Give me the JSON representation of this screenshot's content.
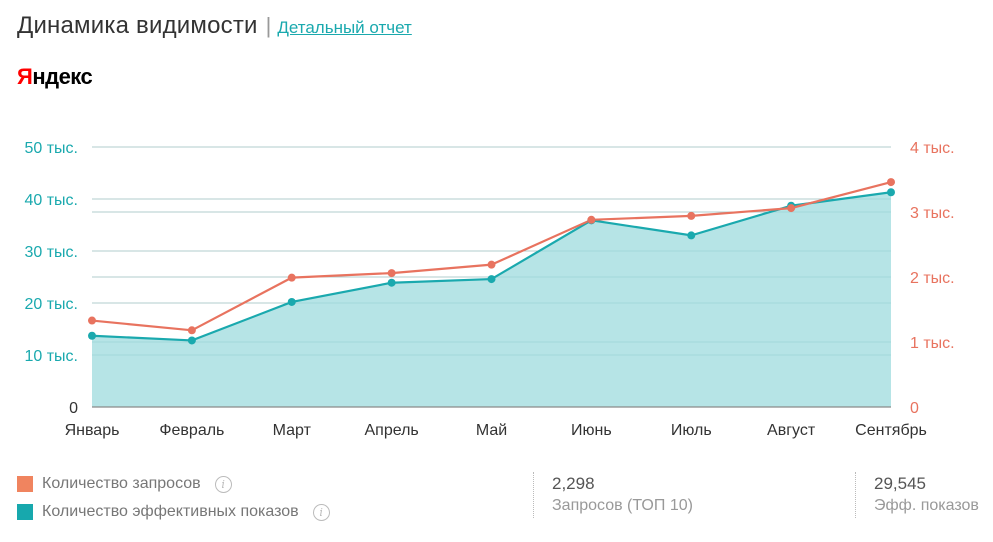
{
  "header": {
    "title": "Динамика видимости",
    "separator": "|",
    "report_link": "Детальный отчет"
  },
  "brand": {
    "first_letter": "Я",
    "rest": "ндекс"
  },
  "colors": {
    "area_fill": "#b2e3e5",
    "area_line": "#1aa9ae",
    "requests": "#e8735f",
    "left_axis": "#1aa9ae",
    "right_axis": "#e8735f"
  },
  "chart_data": {
    "type": "line",
    "categories": [
      "Январь",
      "Февраль",
      "Март",
      "Апрель",
      "Май",
      "Июнь",
      "Июль",
      "Август",
      "Сентябрь"
    ],
    "series": [
      {
        "name": "Количество эффективных показов",
        "axis": "left",
        "fill": "area",
        "values": [
          13700,
          12800,
          20200,
          23900,
          24600,
          35900,
          33000,
          38700,
          41300
        ]
      },
      {
        "name": "Количество запросов",
        "axis": "right",
        "values": [
          1330,
          1180,
          1990,
          2060,
          2190,
          2880,
          2940,
          3060,
          3460
        ]
      }
    ],
    "left_axis": {
      "ticks": [
        0,
        10000,
        20000,
        30000,
        40000,
        50000
      ],
      "tick_labels": [
        "0",
        "10 тыс.",
        "20 тыс.",
        "30 тыс.",
        "40 тыс.",
        "50 тыс."
      ],
      "ylim": [
        0,
        50000
      ]
    },
    "right_axis": {
      "ticks": [
        0,
        1000,
        2000,
        3000,
        4000
      ],
      "tick_labels": [
        "0",
        "1 тыс.",
        "2 тыс.",
        "3 тыс.",
        "4 тыс."
      ],
      "ylim": [
        0,
        4000
      ]
    },
    "grid": true
  },
  "legend": [
    {
      "label": "Количество запросов",
      "color": "#f0845f"
    },
    {
      "label": "Количество эффективных показов",
      "color": "#17a8ad"
    }
  ],
  "info_icon_glyph": "i",
  "stats": [
    {
      "value": "2,298",
      "label": "Запросов (ТОП 10)"
    },
    {
      "value": "29,545",
      "label": "Эфф. показов"
    }
  ]
}
